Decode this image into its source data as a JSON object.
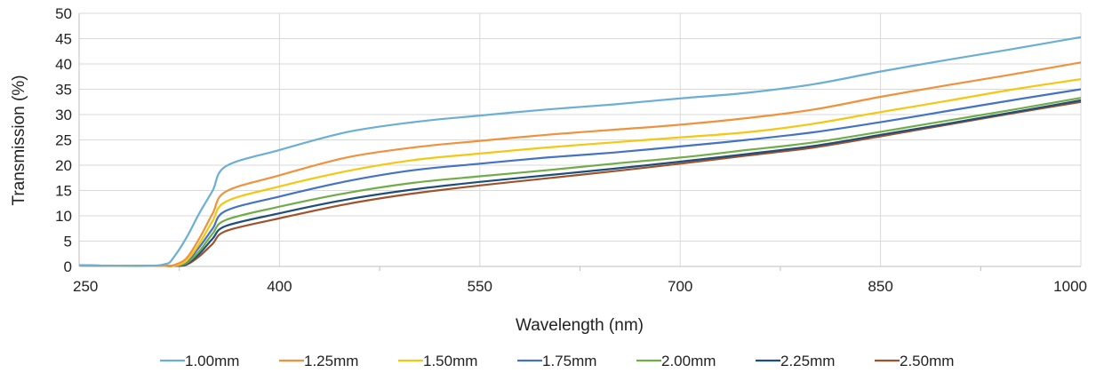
{
  "chart_data": {
    "type": "line",
    "title": "",
    "xlabel": "Wavelength (nm)",
    "ylabel": "Transmission (%)",
    "xlim": [
      250,
      1000
    ],
    "ylim": [
      0,
      50
    ],
    "xticks": [
      250,
      400,
      550,
      700,
      850,
      1000
    ],
    "yticks": [
      0,
      5,
      10,
      15,
      20,
      25,
      30,
      35,
      40,
      45,
      50
    ],
    "grid": true,
    "legend_position": "bottom",
    "x": [
      250,
      300,
      315,
      320,
      330,
      340,
      350,
      360,
      400,
      450,
      500,
      550,
      600,
      650,
      700,
      750,
      800,
      850,
      900,
      950,
      1000
    ],
    "series": [
      {
        "name": "1.00mm",
        "color": "#6BAED6",
        "values": [
          0.2,
          0.1,
          0.5,
          1.5,
          5.5,
          10.5,
          15.0,
          19.8,
          23.0,
          26.5,
          28.5,
          29.8,
          31.0,
          32.0,
          33.2,
          34.3,
          36.0,
          38.5,
          40.8,
          43.0,
          45.3
        ]
      },
      {
        "name": "1.25mm",
        "color": "#F0913C",
        "values": [
          0.2,
          0.1,
          0.1,
          0.2,
          1.5,
          5.5,
          10.5,
          14.8,
          18.0,
          21.5,
          23.5,
          24.8,
          26.0,
          27.0,
          28.0,
          29.3,
          31.0,
          33.5,
          35.8,
          38.0,
          40.3
        ]
      },
      {
        "name": "1.50mm",
        "color": "#F5C710",
        "values": [
          0.2,
          0.1,
          0.1,
          0.1,
          1.0,
          4.5,
          9.0,
          12.8,
          15.8,
          18.8,
          21.0,
          22.3,
          23.5,
          24.5,
          25.5,
          26.5,
          28.2,
          30.5,
          32.7,
          35.0,
          37.0
        ]
      },
      {
        "name": "1.75mm",
        "color": "#4472C4",
        "values": [
          0.2,
          0.1,
          0.1,
          0.1,
          0.8,
          3.8,
          7.5,
          11.0,
          13.8,
          16.8,
          19.0,
          20.3,
          21.5,
          22.5,
          23.7,
          25.0,
          26.5,
          28.5,
          30.7,
          32.9,
          35.0
        ]
      },
      {
        "name": "2.00mm",
        "color": "#70AD47",
        "values": [
          0.2,
          0.1,
          0.1,
          0.1,
          0.6,
          3.0,
          6.5,
          9.2,
          11.8,
          14.5,
          16.5,
          17.8,
          19.0,
          20.3,
          21.5,
          23.0,
          24.5,
          26.6,
          28.8,
          31.0,
          33.3
        ]
      },
      {
        "name": "2.25mm",
        "color": "#1F4E79",
        "values": [
          0.2,
          0.1,
          0.1,
          0.1,
          0.4,
          2.5,
          5.5,
          8.0,
          10.5,
          13.2,
          15.2,
          16.7,
          18.0,
          19.3,
          20.7,
          22.2,
          23.8,
          26.0,
          28.2,
          30.5,
          32.8
        ]
      },
      {
        "name": "2.50mm",
        "color": "#A0522D",
        "values": [
          0.2,
          0.1,
          0.1,
          0.1,
          0.3,
          2.0,
          4.5,
          7.0,
          9.5,
          12.3,
          14.4,
          16.0,
          17.4,
          18.8,
          20.3,
          21.9,
          23.5,
          25.7,
          28.0,
          30.3,
          32.5
        ]
      }
    ]
  }
}
